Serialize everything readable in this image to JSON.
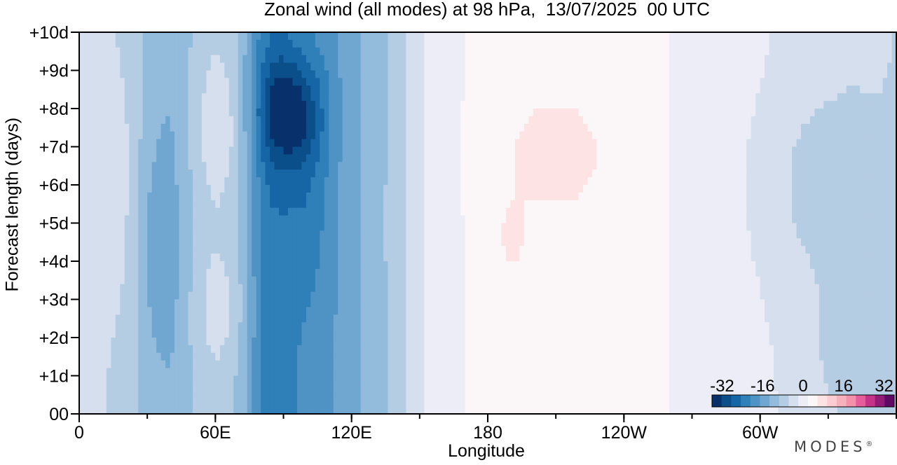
{
  "title": "Zonal wind (all modes) at 98 hPa,  13/07/2025  00 UTC",
  "brand": "MODES",
  "brand_mark": "®",
  "chart_data": {
    "type": "heatmap",
    "title": "Zonal wind (all modes) at 98 hPa,  13/07/2025  00 UTC",
    "xlabel": "Longitude",
    "ylabel": "Forecast length (days)",
    "x_ticks": [
      "0",
      "60E",
      "120E",
      "180",
      "120W",
      "60W"
    ],
    "x_tick_degrees": [
      0,
      60,
      120,
      180,
      240,
      300
    ],
    "x_range_degrees": [
      0,
      360
    ],
    "y_ticks": [
      "00",
      "+1d",
      "+2d",
      "+3d",
      "+4d",
      "+5d",
      "+6d",
      "+7d",
      "+8d",
      "+9d",
      "+10d"
    ],
    "y_range_days": [
      0,
      10
    ],
    "colorbar": {
      "labels": [
        "-32",
        "-16",
        "0",
        "16",
        "32"
      ],
      "label_values": [
        -32,
        -16,
        0,
        16,
        32
      ],
      "range": [
        -36,
        36
      ],
      "step": 4,
      "placement": "bottom-right",
      "colors": [
        "#08306b",
        "#0b4f8a",
        "#1666a6",
        "#2f7fb8",
        "#4f93c4",
        "#70a7d1",
        "#93bbdb",
        "#b5cde3",
        "#d6dfee",
        "#ecedf6",
        "#fbf7f8",
        "#fde3e3",
        "#fbcdd2",
        "#f7b1bd",
        "#f391ab",
        "#e55d9a",
        "#c43388",
        "#931b78",
        "#5e0a64"
      ]
    },
    "profile_lon": [
      0,
      10,
      20,
      30,
      40,
      50,
      60,
      70,
      75,
      80,
      85,
      90,
      95,
      100,
      105,
      110,
      115,
      120,
      130,
      140,
      150,
      160,
      180,
      200,
      220,
      240,
      260,
      280,
      300,
      320,
      340,
      360
    ],
    "profile_u": [
      -3,
      -4,
      -6,
      -9,
      -11,
      -8,
      -6,
      -9,
      -14,
      -20,
      -23,
      -22,
      -20,
      -19,
      -18,
      -17,
      -15,
      -13,
      -10,
      -6,
      -1,
      3,
      5,
      6,
      6,
      5,
      4,
      2,
      1,
      -1,
      -3,
      -4
    ],
    "anomalies": [
      {
        "lon": 93,
        "day": 7.9,
        "slon": 14,
        "sday": 1.5,
        "amp": -15
      },
      {
        "lon": 100,
        "day": 5.5,
        "slon": 10,
        "sday": 2.5,
        "amp": -4
      },
      {
        "lon": 35,
        "day": 4.5,
        "slon": 10,
        "sday": 3.0,
        "amp": -5
      },
      {
        "lon": 15,
        "day": 6.0,
        "slon": 12,
        "sday": 3.5,
        "amp": 4
      },
      {
        "lon": 62,
        "day": 7.5,
        "slon": 10,
        "sday": 2.0,
        "amp": 6
      },
      {
        "lon": 62,
        "day": 2.8,
        "slon": 10,
        "sday": 1.5,
        "amp": 5
      },
      {
        "lon": 210,
        "day": 6.8,
        "slon": 25,
        "sday": 1.5,
        "amp": 4
      },
      {
        "lon": 190,
        "day": 4.5,
        "slon": 8,
        "sday": 1.2,
        "amp": 3
      },
      {
        "lon": 320,
        "day": 6.0,
        "slon": 25,
        "sday": 3.0,
        "amp": -4
      },
      {
        "lon": 340,
        "day": 1.5,
        "slon": 20,
        "sday": 2.0,
        "amp": -3
      }
    ]
  }
}
